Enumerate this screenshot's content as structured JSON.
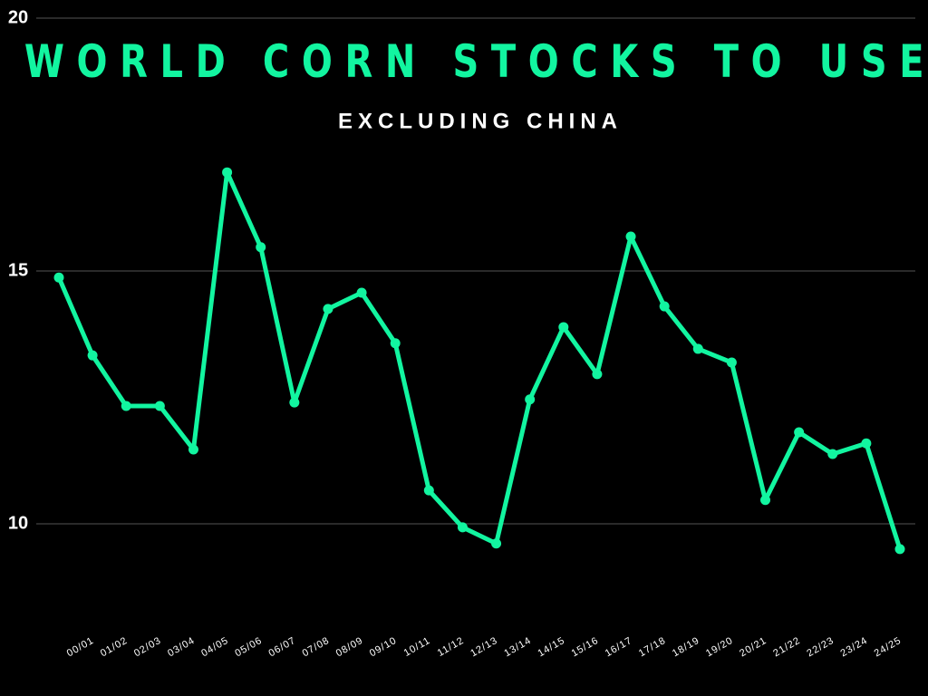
{
  "chart_data": {
    "type": "line",
    "title": "WORLD CORN STOCKS TO USE",
    "subtitle": "EXCLUDING CHINA",
    "categories": [
      "00/01",
      "01/02",
      "02/03",
      "03/04",
      "04/05",
      "05/06",
      "06/07",
      "07/08",
      "08/09",
      "09/10",
      "10/11",
      "11/12",
      "12/13",
      "13/14",
      "14/15",
      "15/16",
      "16/17",
      "17/18",
      "18/19",
      "19/20",
      "20/21",
      "21/22",
      "22/23",
      "23/24",
      "24/25",
      null
    ],
    "series": [
      {
        "name": "World corn stocks to use excluding China",
        "color": "#12f5a0",
        "values": [
          14.87,
          13.33,
          12.33,
          12.33,
          11.47,
          16.95,
          15.47,
          12.4,
          14.25,
          14.57,
          13.57,
          10.66,
          9.93,
          9.61,
          12.46,
          13.89,
          12.96,
          15.68,
          14.3,
          13.46,
          13.19,
          10.47,
          11.81,
          11.38,
          11.59,
          9.5
        ]
      }
    ],
    "ylim": [
      8,
      20
    ],
    "yticks": [
      10,
      15,
      20
    ],
    "grid": true
  }
}
